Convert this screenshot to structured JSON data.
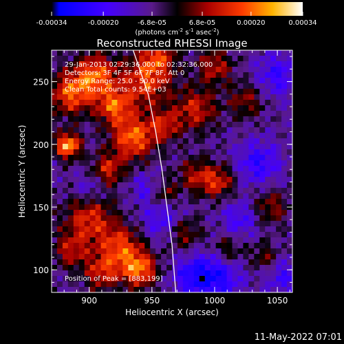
{
  "chart_data": {
    "type": "heatmap",
    "title": "Reconstructed RHESSI Image",
    "xlabel": "Heliocentric X (arcsec)",
    "ylabel": "Heliocentric Y (arcsec)",
    "xlim": [
      870,
      1062
    ],
    "ylim": [
      82,
      275
    ],
    "x_ticks": [
      900,
      950,
      1000,
      1050
    ],
    "y_ticks": [
      100,
      150,
      200,
      250
    ],
    "x_tick_labels": [
      "900",
      "950",
      "1000",
      "1050"
    ],
    "y_tick_labels": [
      "100",
      "150",
      "200",
      "250"
    ],
    "colorbar": {
      "range": [
        -0.00034,
        0.00034
      ],
      "tick_values": [
        -0.00034,
        -0.0002,
        -6.8e-05,
        6.8e-05,
        0.0002,
        0.00034
      ],
      "tick_labels": [
        "-0.00034",
        "-0.00020",
        "-6.8e-05",
        "6.8e-05",
        "0.00020",
        "0.00034"
      ],
      "unit_prefix": "(photons cm",
      "unit_exp1": "-2",
      "unit_mid1": " s",
      "unit_exp2": "-1",
      "unit_mid2": " asec",
      "unit_exp3": "-2",
      "unit_suffix": ")"
    },
    "info_lines": [
      "29-Jan-2013 02:29:36.000 to 02:32:36.000",
      "Detectors: 3F 4F 5F 6F 7F 8F, Att 0",
      "Energy Range: 25.0 - 50.0 keV",
      "Clean   Total counts: 9.54E+03"
    ],
    "peak_label": "Position of Peak = [883,199]",
    "peak": {
      "x": 883,
      "y": 199
    },
    "limb_curve": [
      [
        935,
        275
      ],
      [
        947,
        240
      ],
      [
        953,
        210
      ],
      [
        958,
        180
      ],
      [
        962,
        150
      ],
      [
        966,
        120
      ],
      [
        968,
        95
      ],
      [
        969,
        82
      ]
    ],
    "footer_date": "11-May-2022 07:01",
    "hot_spots": [
      {
        "x": 883,
        "y": 199,
        "r": 7,
        "v": 1.0
      },
      {
        "x": 885,
        "y": 240,
        "r": 12,
        "v": 0.7
      },
      {
        "x": 905,
        "y": 255,
        "r": 12,
        "v": 0.75
      },
      {
        "x": 920,
        "y": 230,
        "r": 10,
        "v": 0.7
      },
      {
        "x": 935,
        "y": 205,
        "r": 12,
        "v": 0.8
      },
      {
        "x": 945,
        "y": 250,
        "r": 14,
        "v": 0.65
      },
      {
        "x": 955,
        "y": 270,
        "r": 10,
        "v": 0.55
      },
      {
        "x": 915,
        "y": 180,
        "r": 9,
        "v": 0.55
      },
      {
        "x": 960,
        "y": 215,
        "r": 9,
        "v": 0.5
      },
      {
        "x": 985,
        "y": 228,
        "r": 12,
        "v": 0.55
      },
      {
        "x": 1000,
        "y": 262,
        "r": 10,
        "v": 0.5
      },
      {
        "x": 985,
        "y": 175,
        "r": 10,
        "v": 0.45
      },
      {
        "x": 1003,
        "y": 170,
        "r": 9,
        "v": 0.55
      },
      {
        "x": 1025,
        "y": 235,
        "r": 10,
        "v": 0.4
      },
      {
        "x": 900,
        "y": 140,
        "r": 14,
        "v": 0.6
      },
      {
        "x": 925,
        "y": 118,
        "r": 12,
        "v": 0.65
      },
      {
        "x": 940,
        "y": 100,
        "r": 10,
        "v": 0.8
      },
      {
        "x": 910,
        "y": 98,
        "r": 10,
        "v": 0.55
      },
      {
        "x": 885,
        "y": 115,
        "r": 10,
        "v": 0.45
      },
      {
        "x": 975,
        "y": 130,
        "r": 10,
        "v": 0.45
      },
      {
        "x": 1045,
        "y": 150,
        "r": 10,
        "v": 0.4
      },
      {
        "x": 1010,
        "y": 115,
        "r": 9,
        "v": 0.4
      },
      {
        "x": 960,
        "y": 160,
        "r": 8,
        "v": 0.4
      },
      {
        "x": 1040,
        "y": 110,
        "r": 8,
        "v": 0.35
      }
    ],
    "cold_spots": [
      {
        "x": 1000,
        "y": 95,
        "r": 14,
        "v": -0.6
      },
      {
        "x": 1035,
        "y": 185,
        "r": 12,
        "v": -0.45
      },
      {
        "x": 960,
        "y": 140,
        "r": 12,
        "v": -0.4
      },
      {
        "x": 1050,
        "y": 255,
        "r": 12,
        "v": -0.4
      },
      {
        "x": 980,
        "y": 95,
        "r": 10,
        "v": -0.35
      },
      {
        "x": 900,
        "y": 165,
        "r": 8,
        "v": -0.3
      },
      {
        "x": 1020,
        "y": 140,
        "r": 10,
        "v": -0.35
      },
      {
        "x": 945,
        "y": 165,
        "r": 8,
        "v": -0.3
      },
      {
        "x": 1055,
        "y": 95,
        "r": 10,
        "v": -0.35
      }
    ]
  }
}
